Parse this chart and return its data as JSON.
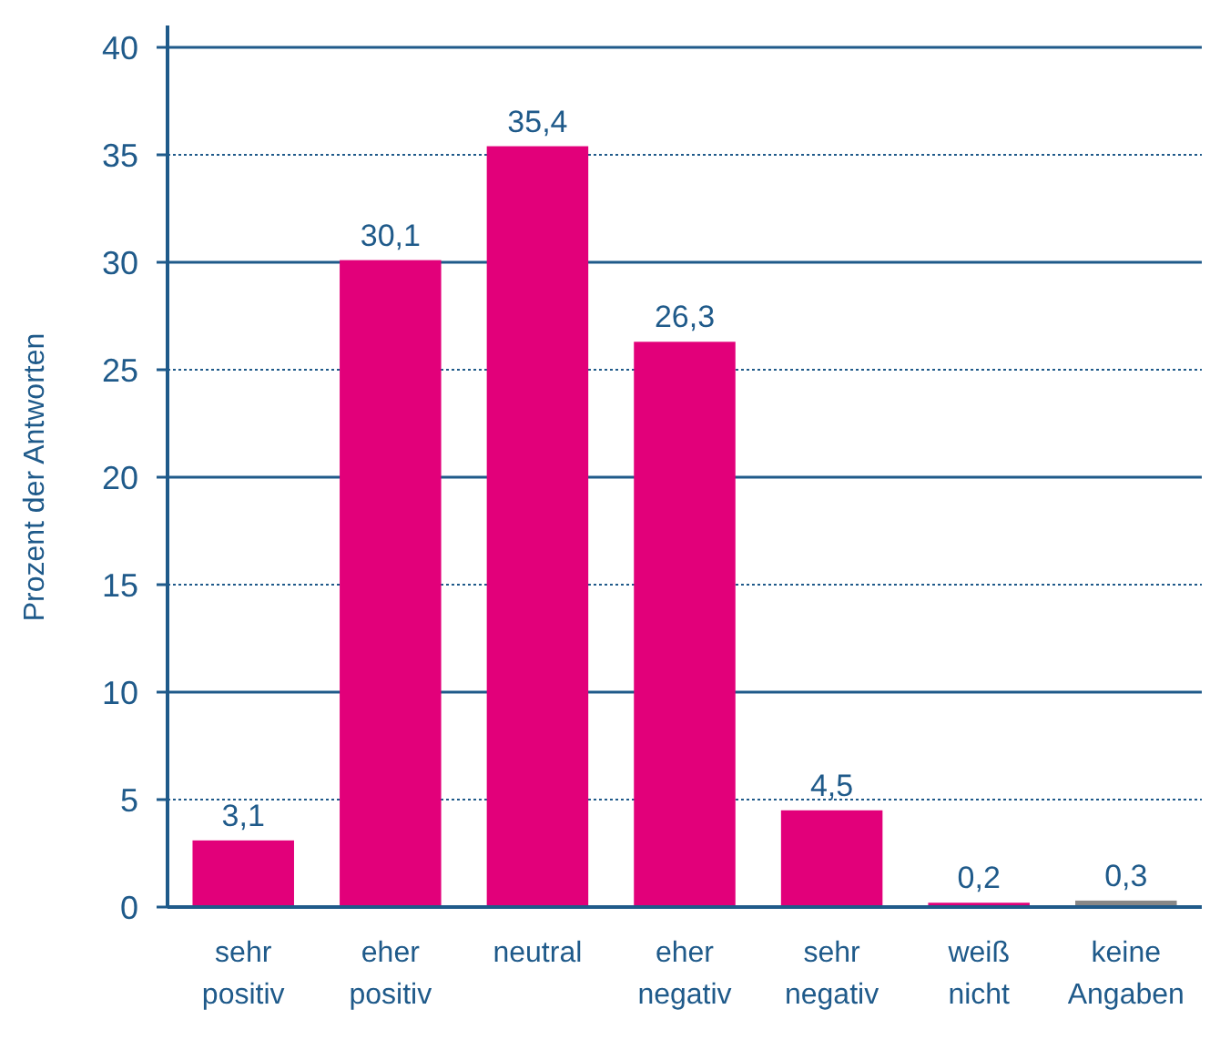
{
  "chart_data": {
    "type": "bar",
    "ylabel": "Prozent der Antworten",
    "categories": [
      "sehr positiv",
      "eher positiv",
      "neutral",
      "eher negativ",
      "sehr negativ",
      "weiß nicht",
      "keine Angaben"
    ],
    "values": [
      3.1,
      30.1,
      35.4,
      26.3,
      4.5,
      0.2,
      0.3
    ],
    "colors": [
      "#e2007a",
      "#e2007a",
      "#e2007a",
      "#e2007a",
      "#e2007a",
      "#e2007a",
      "#888888"
    ],
    "value_labels": [
      "3,1",
      "30,1",
      "35,4",
      "26,3",
      "4,5",
      "0,2",
      "0,3"
    ],
    "ylim": [
      0,
      40
    ],
    "yticks": [
      0,
      5,
      10,
      15,
      20,
      25,
      30,
      35,
      40
    ],
    "grid": "y"
  }
}
